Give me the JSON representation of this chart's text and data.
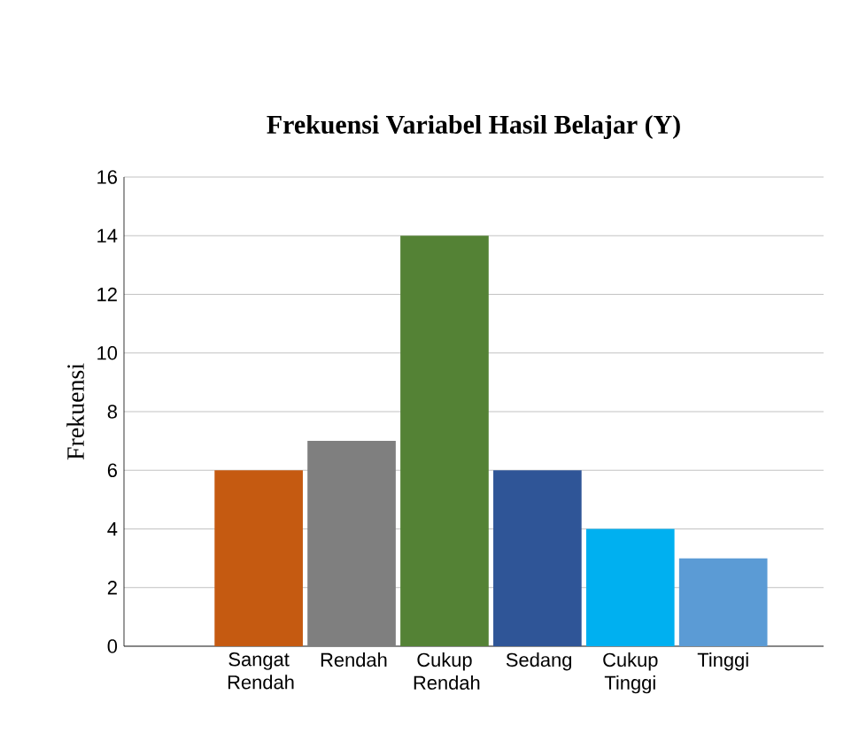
{
  "chart_data": {
    "type": "bar",
    "title": "Frekuensi Variabel Hasil Belajar (Y)",
    "ylabel": "Frekuensi",
    "categories": [
      "Sangat Rendah",
      "Rendah",
      "Cukup Rendah",
      "Sedang",
      "Cukup Tinggi",
      "Tinggi"
    ],
    "values": [
      6,
      7,
      14,
      6,
      4,
      3
    ],
    "colors": [
      "#c55a11",
      "#7f7f7f",
      "#548235",
      "#2f5597",
      "#00b0f0",
      "#5b9bd5"
    ],
    "ylim": [
      0,
      16
    ],
    "yticks": [
      0,
      2,
      4,
      6,
      8,
      10,
      12,
      14,
      16
    ],
    "grid": "y"
  }
}
